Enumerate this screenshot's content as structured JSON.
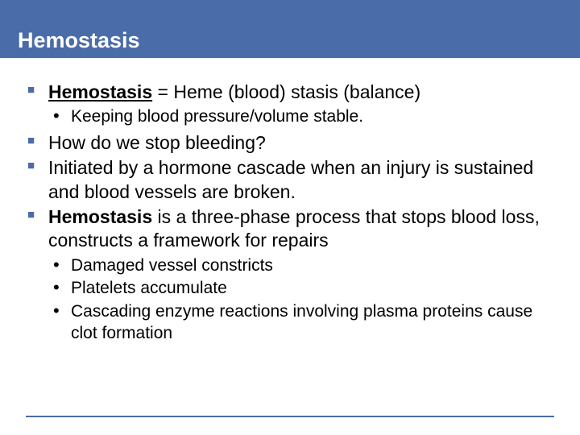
{
  "header": {
    "title": "Hemostasis",
    "background_color": "#4a6ca8",
    "title_color": "#ffffff",
    "title_fontsize": 27
  },
  "bullets": {
    "item1_term": "Hemostasis",
    "item1_rest": " = Heme (blood) stasis (balance)",
    "item1_sub1": "Keeping blood pressure/volume stable.",
    "item2": "How do we stop bleeding?",
    "item3": "Initiated by a hormone cascade when an injury is sustained and blood vessels are broken.",
    "item4_term": "Hemostasis",
    "item4_rest": " is a three-phase process that stops blood loss, constructs a framework for repairs",
    "item4_sub1": "Damaged vessel constricts",
    "item4_sub2": "Platelets accumulate",
    "item4_sub3": "Cascading enzyme reactions involving plasma proteins cause clot formation"
  },
  "styling": {
    "bullet_marker_color": "#4a6ca8",
    "sub_bullet_marker_color": "#000000",
    "text_color": "#000000",
    "main_fontsize": 23,
    "sub_fontsize": 21,
    "footer_line_color": "#4a6ca8"
  }
}
